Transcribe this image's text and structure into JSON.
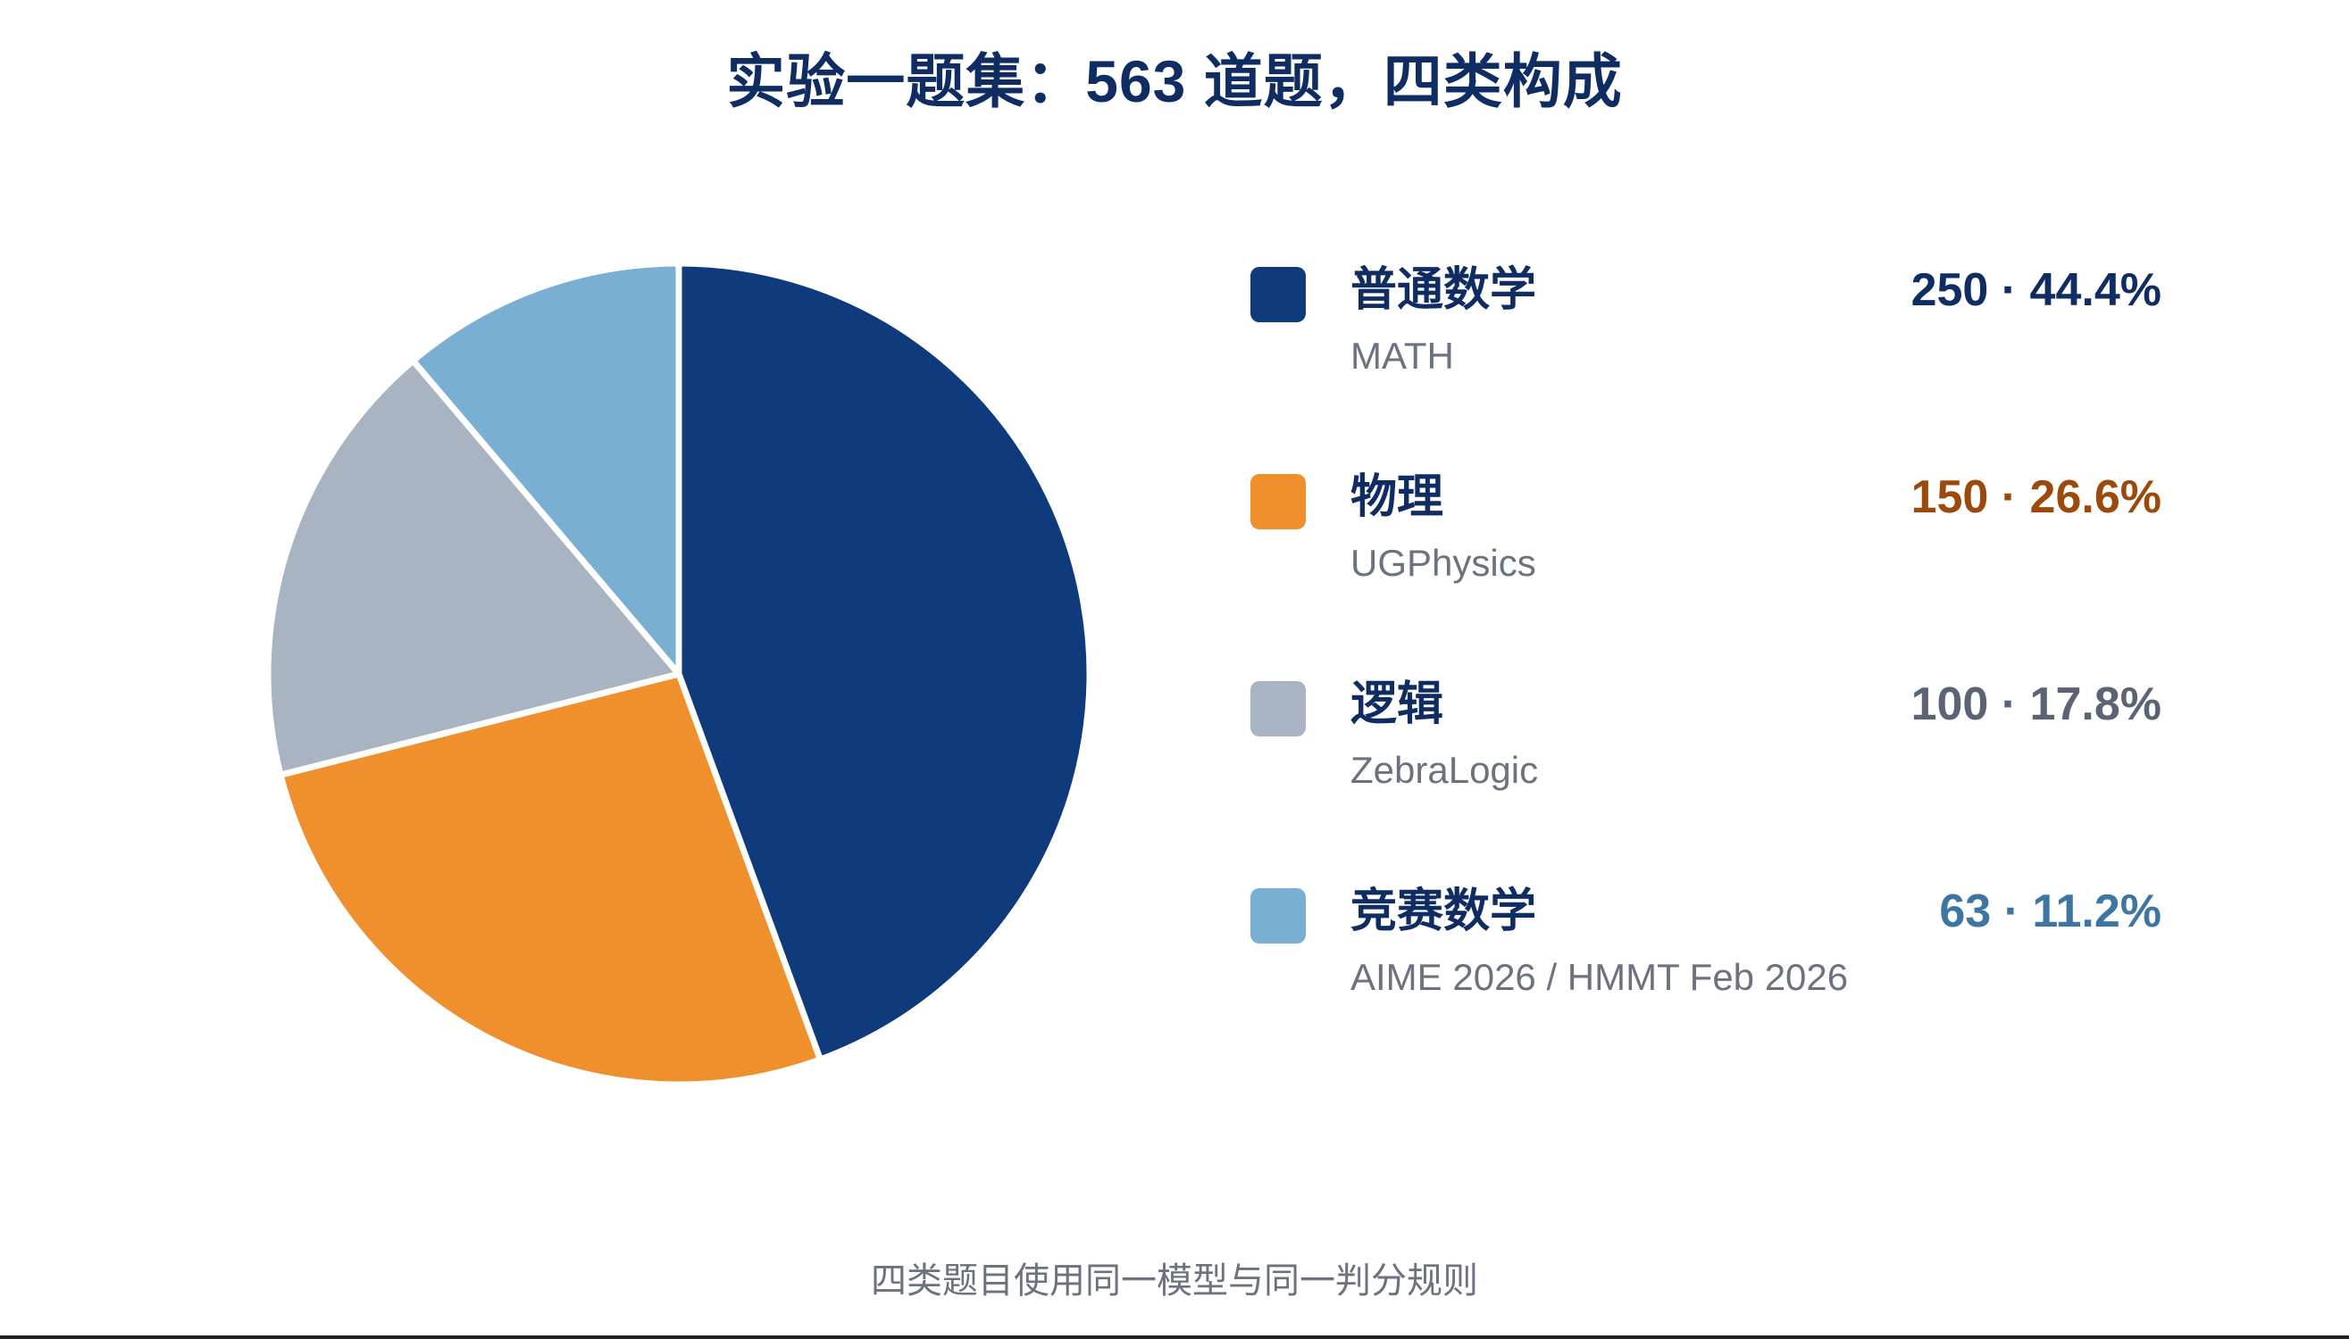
{
  "title": "实验一题集：563 道题，四类构成",
  "footnote": "四类题目使用同一模型与同一判分规则",
  "chart_data": {
    "type": "pie",
    "title": "实验一题集：563 道题，四类构成",
    "total": 563,
    "start_angle": "12 o'clock",
    "direction": "clockwise",
    "legend_position": "right",
    "slices": [
      {
        "label": "普通数学",
        "sublabel": "MATH",
        "value": 250,
        "percent": "44.4%",
        "stat": "250 · 44.4%",
        "color": "#0f3a7c",
        "text_color": "#0f2d62"
      },
      {
        "label": "物理",
        "sublabel": "UGPhysics",
        "value": 150,
        "percent": "26.6%",
        "stat": "150 · 26.6%",
        "color": "#f0902c",
        "text_color": "#9c4a0c"
      },
      {
        "label": "逻辑",
        "sublabel": "ZebraLogic",
        "value": 100,
        "percent": "17.8%",
        "stat": "100 · 17.8%",
        "color": "#a9b4c2",
        "text_color": "#5b6474"
      },
      {
        "label": "竞赛数学",
        "sublabel": "AIME 2026 / HMMT Feb 2026",
        "value": 63,
        "percent": "11.2%",
        "stat": "63 · 11.2%",
        "color": "#7aafd4",
        "text_color": "#3d75a3"
      }
    ]
  }
}
